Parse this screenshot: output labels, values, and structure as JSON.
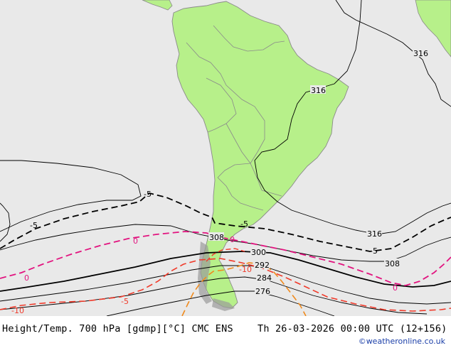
{
  "map": {
    "colors": {
      "ocean": "#e9e9e9",
      "land": "#b7f08a",
      "border": "#8a8a8a",
      "height_contour": "#000000",
      "temp_minus5": "#000000",
      "temp_0": "#e2137f",
      "temp_minus10": "#f03a2a",
      "temp_minus15": "#f08a1c",
      "andes_terrain": "#9a9a9a"
    },
    "height_labels": {
      "h316_top": "316",
      "h316_mid": "316",
      "h316_south": "316",
      "h308_west": "308",
      "h308_east": "308",
      "h300": "300",
      "h292": "292",
      "h284": "284",
      "h276": "276"
    },
    "temp_labels": {
      "t_minus5_a": "-5",
      "t_minus5_b": "-5",
      "t_minus5_c": "-5",
      "t_minus5_d": "-5",
      "t_0_a": "0",
      "t_0_b": "0",
      "t_0_c": "0",
      "t_0_d": "0",
      "t_minus10_a": "-10",
      "t_minus10_b": "-10",
      "t_minus5_red": "-5"
    }
  },
  "footer": {
    "title": "Height/Temp. 700 hPa [gdmp][°C] CMC ENS",
    "valid_time": "Th 26-03-2026 00:00 UTC (12+156)",
    "credit": "©weatheronline.co.uk"
  }
}
